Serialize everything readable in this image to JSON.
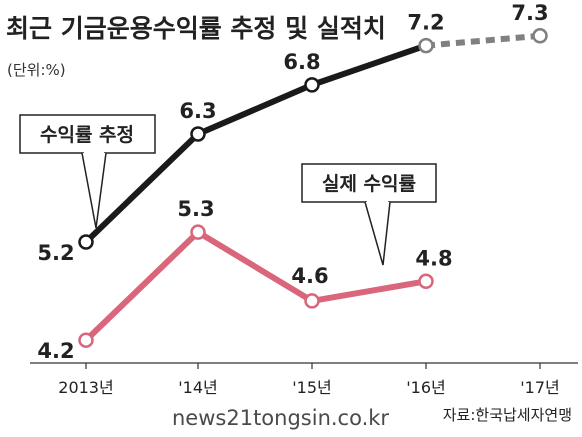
{
  "chart_data": {
    "type": "line",
    "title": "최근 기금운용수익률 추정 및 실적치",
    "unit": "(단위:%)",
    "categories": [
      "2013년",
      "'14년",
      "'15년",
      "'16년",
      "'17년"
    ],
    "series": [
      {
        "name": "수익률 추정",
        "values": [
          5.2,
          6.3,
          6.8,
          7.2,
          7.3
        ],
        "color": "#1a1a1a",
        "projected_from_index": 3
      },
      {
        "name": "실제 수익률",
        "values": [
          4.2,
          5.3,
          4.6,
          4.8,
          null
        ],
        "color": "#d9667a"
      }
    ],
    "projected_color": "#808080",
    "grid": false,
    "source": "자료:한국납세자연맹",
    "watermark": "news21tongsin.co.kr"
  }
}
